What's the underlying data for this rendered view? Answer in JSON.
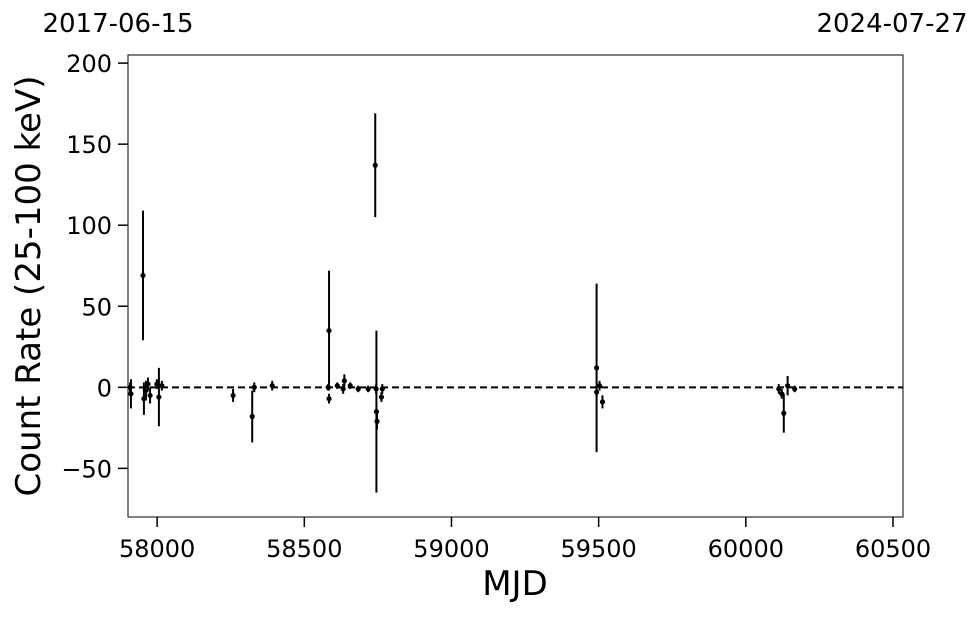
{
  "chart_data": {
    "type": "errorbar",
    "top_left_label": "2017-06-15",
    "top_right_label": "2024-07-27",
    "xlabel": "MJD",
    "ylabel": "Count Rate (25-100 keV)",
    "xlim": [
      57901,
      60534
    ],
    "xticks": [
      58000,
      58500,
      59000,
      59500,
      60000,
      60500
    ],
    "ylim": [
      -80,
      205
    ],
    "yticks": [
      {
        "value": -50,
        "label": "−50"
      },
      0,
      50,
      100,
      150,
      200
    ],
    "hline": 0,
    "color": "#000000",
    "series": [
      {
        "name": "data",
        "color": "#000000",
        "x": [
          57908,
          57911,
          57952,
          57955,
          57962,
          57969,
          57976,
          57999,
          58006,
          58016,
          58258,
          58323,
          58330,
          58391,
          58581,
          58584,
          58584,
          58612,
          58632,
          58636,
          58656,
          58683,
          58717,
          58741,
          58744,
          58745,
          58747,
          58762,
          58765,
          59493,
          59493,
          59503,
          59513,
          60112,
          60122,
          60129,
          60142,
          60166
        ],
        "values": [
          0,
          -4,
          69,
          -7,
          -2,
          2,
          -5,
          2,
          -6,
          1,
          -5,
          -18,
          0,
          1,
          0,
          35,
          -7,
          1,
          -1,
          4,
          1,
          -1,
          -1,
          137,
          -1,
          -15,
          -21,
          -6,
          -1,
          12,
          -3,
          1,
          -9,
          -1,
          -4,
          -16,
          1,
          -1
        ],
        "errors": [
          3,
          9,
          40,
          10,
          6,
          4,
          5,
          3,
          18,
          3,
          4,
          16,
          3,
          3,
          2,
          37,
          3,
          2,
          3,
          4,
          2,
          2,
          2,
          32,
          3,
          50,
          5,
          3,
          3,
          52,
          3,
          3,
          4,
          3,
          3,
          12,
          6,
          2
        ]
      }
    ]
  }
}
